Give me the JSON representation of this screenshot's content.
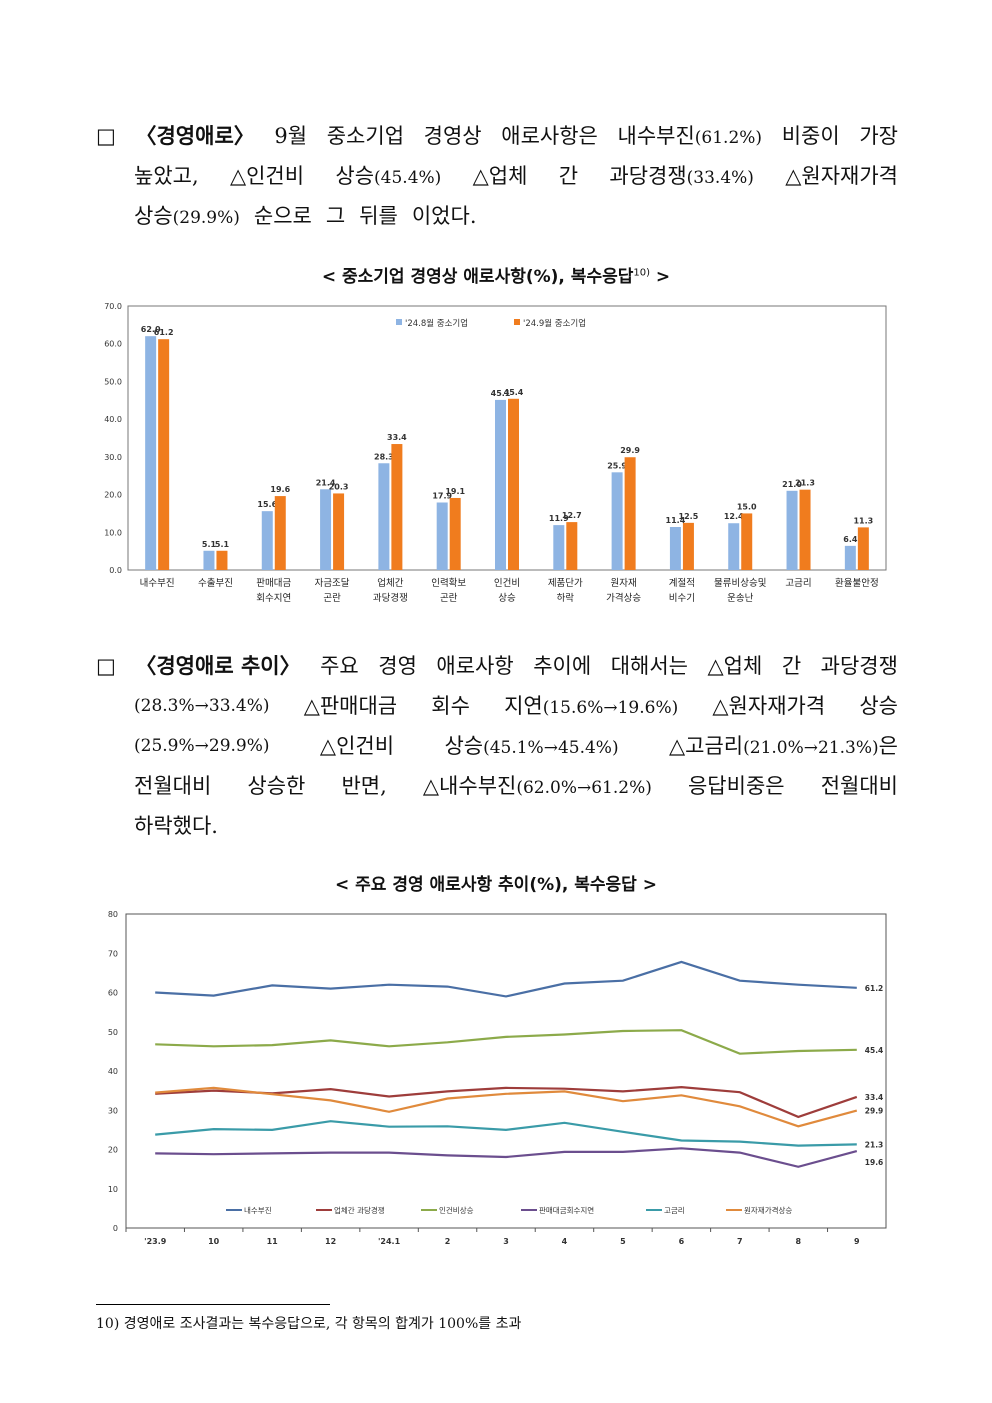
{
  "para1": {
    "l1": [
      "□",
      "〈경영애로〉",
      "9월",
      "중소기업",
      "경영상",
      "애로사항은",
      "내수부진",
      "(61.2%)",
      "비중이",
      "가장"
    ],
    "l2": [
      "높았고,",
      "△인건비",
      "상승",
      "(45.4%)",
      "△업체",
      "간",
      "과당경쟁",
      "(33.4%)",
      "△원자재가격"
    ],
    "l3": [
      "상승",
      "(29.9%)",
      "순으로",
      "그",
      "뒤를",
      "이었다."
    ]
  },
  "chart1_caption": "< 중소기업 경영상 애로사항(%), 복수응답",
  "chart1_caption_sup": "10)",
  "chart1_caption_end": " >",
  "para2": {
    "l1": [
      "□",
      "〈경영애로 추이〉",
      "주요",
      "경영",
      "애로사항",
      "추이에",
      "대해서는",
      "△업체",
      "간",
      "과당경쟁"
    ],
    "l2": [
      "(28.3%→33.4%)",
      "△판매대금",
      "회수",
      "지연",
      "(15.6%→19.6%)",
      "△원자재가격",
      "상승"
    ],
    "l3": [
      "(25.9%→29.9%)",
      "△인건비",
      "상승",
      "(45.1%→45.4%)",
      "△고금리",
      "(21.0%→21.3%)",
      "은"
    ],
    "l4": [
      "전월대비",
      "상승한",
      "반면,",
      "△내수부진",
      "(62.0%→61.2%)",
      "응답비중은",
      "전월대비"
    ],
    "l5": [
      "하락했다."
    ]
  },
  "chart2_caption": "< 주요 경영 애로사항 추이(%), 복수응답 >",
  "footnote": "10) 경영애로 조사결과는 복수응답으로, 각 항목의 합계가 100%를 초과",
  "chart_data": [
    {
      "type": "bar",
      "ylim": [
        0,
        70
      ],
      "y_ticks": [
        "0.0",
        "10.0",
        "20.0",
        "30.0",
        "40.0",
        "50.0",
        "60.0",
        "70.0"
      ],
      "categories": [
        [
          "내수부진"
        ],
        [
          "수출부진"
        ],
        [
          "판매대금",
          "회수지연"
        ],
        [
          "자금조달",
          "곤란"
        ],
        [
          "업체간",
          "과당경쟁"
        ],
        [
          "인력확보",
          "곤란"
        ],
        [
          "인건비",
          "상승"
        ],
        [
          "제품단가",
          "하락"
        ],
        [
          "원자재",
          "가격상승"
        ],
        [
          "계절적",
          "비수기"
        ],
        [
          "물류비상승및",
          "운송난"
        ],
        [
          "고금리"
        ],
        [
          "환율불안정"
        ]
      ],
      "series": [
        {
          "name": "'24.8월 중소기업",
          "color": "#8EB4E3",
          "values": [
            62.0,
            5.1,
            15.6,
            21.4,
            28.3,
            17.9,
            45.1,
            11.9,
            25.9,
            11.4,
            12.4,
            21.0,
            6.4
          ],
          "labels": [
            "62.0",
            "5.1",
            "15.6",
            "21.4",
            "28.3",
            "17.9",
            "45.1",
            "11.9",
            "25.9",
            "11.4",
            "12.4",
            "21.0",
            "6.4"
          ]
        },
        {
          "name": "'24.9월 중소기업",
          "color": "#F07C1E",
          "values": [
            61.2,
            5.1,
            19.6,
            20.3,
            33.4,
            19.1,
            45.4,
            12.7,
            29.9,
            12.5,
            15.0,
            21.3,
            11.3
          ],
          "labels": [
            "61.2",
            "5.1",
            "19.6",
            "20.3",
            "33.4",
            "19.1",
            "45.4",
            "12.7",
            "29.9",
            "12.5",
            "15.0",
            "21.3",
            "11.3"
          ]
        }
      ],
      "legend": "top-center"
    },
    {
      "type": "line",
      "ylim": [
        0,
        80
      ],
      "y_ticks": [
        "0",
        "10",
        "20",
        "30",
        "40",
        "50",
        "60",
        "70",
        "80"
      ],
      "x": [
        "'23.9",
        "10",
        "11",
        "12",
        "'24.1",
        "2",
        "3",
        "4",
        "5",
        "6",
        "7",
        "8",
        "9"
      ],
      "series": [
        {
          "name": "내수부진",
          "color": "#4A6FA5",
          "values": [
            60.0,
            59.2,
            61.8,
            61.0,
            62.0,
            61.5,
            59.0,
            62.3,
            63.0,
            67.8,
            63.0,
            62.0,
            61.2
          ],
          "end_label": "61.2"
        },
        {
          "name": "업체간 과당경쟁",
          "color": "#9E3D3B",
          "values": [
            34.2,
            35.0,
            34.3,
            35.4,
            33.5,
            34.8,
            35.7,
            35.5,
            34.8,
            35.9,
            34.6,
            28.3,
            33.4
          ],
          "end_label": "33.4"
        },
        {
          "name": "인건비상승",
          "color": "#8CAA4A",
          "values": [
            46.8,
            46.3,
            46.6,
            47.8,
            46.3,
            47.3,
            48.7,
            49.3,
            50.2,
            50.4,
            44.4,
            45.1,
            45.4
          ],
          "end_label": "45.4"
        },
        {
          "name": "판매대금회수지연",
          "color": "#6B4E8E",
          "values": [
            19.0,
            18.8,
            19.0,
            19.2,
            19.2,
            18.5,
            18.1,
            19.4,
            19.4,
            20.3,
            19.2,
            15.6,
            19.6
          ],
          "end_label": "19.6"
        },
        {
          "name": "고금리",
          "color": "#3A9BA8",
          "values": [
            23.8,
            25.2,
            25.0,
            27.2,
            25.8,
            25.9,
            25.0,
            26.8,
            24.5,
            22.3,
            22.0,
            21.0,
            21.3
          ],
          "end_label": "21.3"
        },
        {
          "name": "원자재가격상승",
          "color": "#E08A3C",
          "values": [
            34.5,
            35.7,
            34.1,
            32.5,
            29.6,
            33.0,
            34.2,
            34.8,
            32.3,
            33.8,
            31.0,
            25.9,
            29.9
          ],
          "end_label": "29.9"
        }
      ],
      "legend": "bottom"
    }
  ]
}
